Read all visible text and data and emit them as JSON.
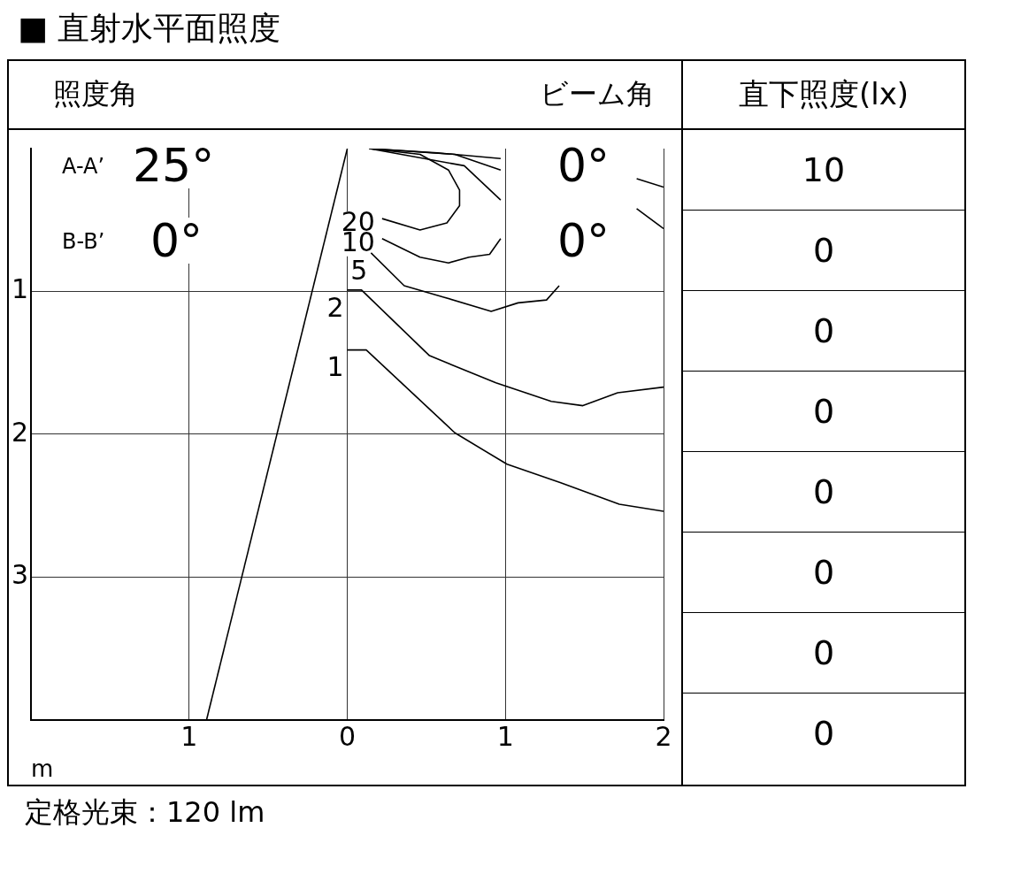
{
  "chart_data": {
    "type": "line",
    "title": "■ 直射水平面照度",
    "xlabel": "m",
    "xlim": [
      -2,
      2
    ],
    "xticks": [
      {
        "value": -1,
        "label": "1"
      },
      0,
      1,
      2
    ],
    "ylim": [
      4,
      0
    ],
    "yticks": [
      1,
      2,
      3
    ],
    "grid": true,
    "legend": false,
    "marker": "none",
    "line_style": "solid",
    "series": [
      {
        "name": "20",
        "color": "#000000",
        "x": [
          0.22,
          0.46,
          0.63,
          0.71,
          0.71,
          0.64,
          0.46,
          0.14
        ],
        "values": [
          0.49,
          0.57,
          0.52,
          0.4,
          0.29,
          0.15,
          0.04,
          0
        ]
      },
      {
        "name": "10",
        "color": "#000000",
        "x": [
          0.22,
          0.46,
          0.64,
          0.77,
          0.9,
          0.97
        ],
        "values": [
          0.63,
          0.76,
          0.8,
          0.76,
          0.74,
          0.63
        ]
      },
      {
        "name": "5",
        "color": "#000000",
        "x": [
          0.15,
          0.36,
          0.61,
          0.91,
          1.08,
          1.26,
          1.34
        ],
        "values": [
          0.73,
          0.96,
          1.04,
          1.14,
          1.08,
          1.06,
          0.96
        ]
      },
      {
        "name": "2",
        "color": "#000000",
        "x": [
          0,
          0.09,
          0.52,
          0.94,
          1.29,
          1.49,
          1.71,
          2
        ],
        "values": [
          0.99,
          0.99,
          1.45,
          1.64,
          1.77,
          1.8,
          1.71,
          1.67
        ]
      },
      {
        "name": "1",
        "color": "#000000",
        "x": [
          0,
          0.12,
          0.68,
          1.01,
          1.35,
          1.72,
          2
        ],
        "values": [
          1.41,
          1.41,
          1.99,
          2.21,
          2.34,
          2.49,
          2.54
        ]
      },
      {
        "color": "#000000",
        "x": [
          0.14,
          0.74,
          0.97
        ],
        "values": [
          0,
          0.12,
          0.36
        ]
      },
      {
        "color": "#000000",
        "x": [
          0.14,
          0.68,
          0.97
        ],
        "values": [
          0,
          0.04,
          0.15
        ]
      },
      {
        "color": "#000000",
        "x": [
          0.14,
          0.57,
          0.97
        ],
        "values": [
          0,
          0.03,
          0.07
        ]
      },
      {
        "color": "#000000",
        "x": [
          1.83,
          2
        ],
        "values": [
          0.21,
          0.27
        ]
      },
      {
        "color": "#000000",
        "x": [
          1.83,
          2
        ],
        "values": [
          0.42,
          0.56
        ]
      },
      {
        "color": "#000000",
        "x": [
          0,
          -0.89
        ],
        "values": [
          0,
          4
        ]
      }
    ],
    "annotations": [
      "照度角",
      "ビーム角",
      "A-A’",
      "25°",
      "0°",
      "B-B’",
      "0°",
      "0°",
      "直下照度(lx)",
      "10",
      "0",
      "0",
      "0",
      "0",
      "0",
      "0",
      "0",
      "定格光束：120 lm"
    ]
  }
}
